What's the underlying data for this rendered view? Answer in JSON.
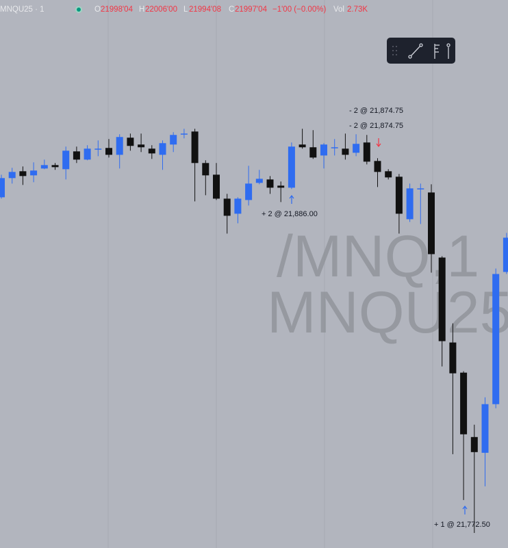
{
  "header": {
    "symbol": "MNQU25 · 1",
    "open_label": "O",
    "open": "21998'04",
    "high_label": "H",
    "high": "22006'00",
    "low_label": "L",
    "low": "21994'08",
    "close_label": "C",
    "close": "21997'04",
    "change": "−1'00 (−0.00%)",
    "volume_label": "Vol",
    "volume": "2.73K"
  },
  "watermark": [
    "/MNQ,1",
    "MNQU25"
  ],
  "chart_data": {
    "type": "candlestick",
    "up_color": "#2f6cf0",
    "down_color": "#111111",
    "ylim": [
      21752,
      21952
    ],
    "open": [
      21880,
      21887,
      21889.5,
      21888,
      21890.5,
      21891.75,
      21890.25,
      21896.75,
      21893.75,
      21897.5,
      21898,
      21895.5,
      21901.75,
      21899.25,
      21897.75,
      21895.5,
      21899.25,
      21903,
      21904,
      21892.5,
      21888.25,
      21879.5,
      21874,
      21879,
      21885.25,
      21886.5,
      21884.25,
      21883.5,
      21899.25,
      21898.25,
      21895.25,
      21898,
      21897.75,
      21896.25,
      21900,
      21893.25,
      21889.5,
      21887.5,
      21872,
      21883,
      21881.75,
      21858,
      21827,
      21816,
      21792.5,
      21786.75,
      21804.5,
      21852.75
    ],
    "high": [
      21888.25,
      21890.75,
      21891.25,
      21892.75,
      21893.75,
      21892.5,
      21898.5,
      21898.5,
      21899,
      21900.75,
      21901.25,
      21903,
      21903.25,
      21903.25,
      21899,
      21900.75,
      21903.75,
      21905,
      21905,
      21893.5,
      21892.5,
      21881.25,
      21880,
      21891.5,
      21890,
      21887.75,
      21885.75,
      21900,
      21905,
      21904.5,
      21899.75,
      21901.25,
      21903.25,
      21903,
      21902.75,
      21894.25,
      21890.25,
      21888.5,
      21885,
      21885,
      21884.75,
      21858.5,
      21834,
      21816.5,
      21797,
      21807,
      21854,
      21867
    ],
    "low": [
      21879.5,
      21885,
      21884.5,
      21885.5,
      21890.25,
      21890,
      21886.5,
      21892.5,
      21893.5,
      21895,
      21894.5,
      21890.5,
      21897,
      21896.5,
      21894,
      21890,
      21896.5,
      21901.5,
      21878.5,
      21880.75,
      21879,
      21866.75,
      21870.5,
      21877,
      21884.75,
      21881.25,
      21878.25,
      21883,
      21897.75,
      21894,
      21890.5,
      21895.25,
      21893.75,
      21895,
      21892,
      21883.75,
      21886.5,
      21866.75,
      21871,
      21870.25,
      21852.5,
      21818.25,
      21786.25,
      21769.5,
      21757.5,
      21774.5,
      21803,
      21852
    ],
    "close": [
      21887,
      21889.25,
      21887.75,
      21889.75,
      21891.75,
      21891,
      21897,
      21893.75,
      21897.75,
      21897.75,
      21895.5,
      21902,
      21898.75,
      21898.25,
      21896,
      21899.75,
      21902.75,
      21903.25,
      21892.5,
      21888,
      21879.5,
      21873.25,
      21879.5,
      21885,
      21886.75,
      21883.5,
      21883.5,
      21898.5,
      21898.25,
      21894.5,
      21899.25,
      21898.25,
      21895.5,
      21899.5,
      21893,
      21889.25,
      21887.25,
      21874,
      21883.25,
      21883.25,
      21859.25,
      21827.5,
      21815.75,
      21793.5,
      21787,
      21804.5,
      21852,
      21865.25
    ],
    "annotations": [
      "- 2 @ 21,874.75",
      "- 2 @ 21,874.75",
      "+ 2 @ 21,886.00",
      "+ 1 @ 21,772.50"
    ]
  }
}
